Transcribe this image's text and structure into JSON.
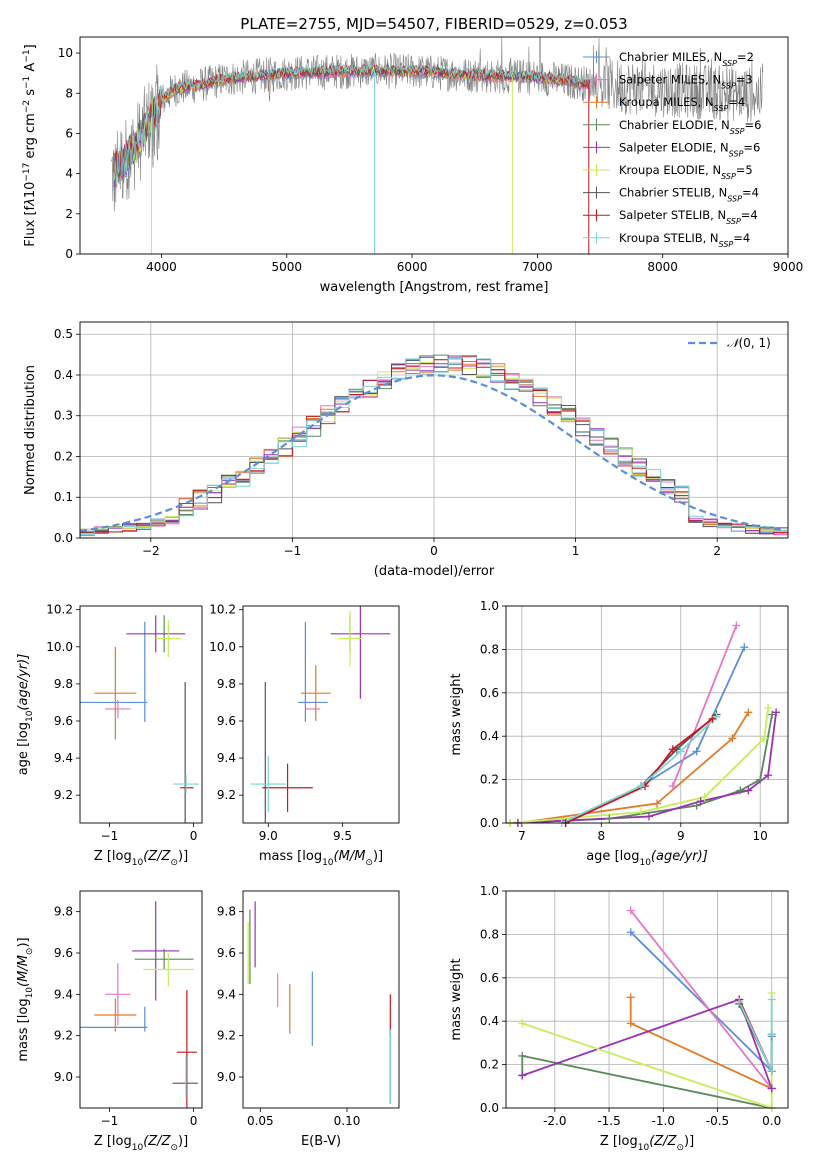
{
  "figure": {
    "title": "PLATE=2755, MJD=54507, FIBERID=0529, z=0.053"
  },
  "series_colors": {
    "Chabrier MILES": "#5b8fd9",
    "Salpeter MILES": "#e377c2",
    "Kroupa MILES": "#e07b2a",
    "Chabrier ELODIE": "#5a8a5a",
    "Salpeter ELODIE": "#9b30b8",
    "Kroupa ELODIE": "#c8ec5a",
    "Chabrier STELIB": "#555555",
    "Salpeter STELIB": "#c8171e",
    "Kroupa STELIB": "#7fd4d4",
    "observed": "#808080"
  },
  "chart_data": [
    {
      "type": "line",
      "title": "PLATE=2755, MJD=54507, FIBERID=0529, z=0.053",
      "xlabel": "wavelength [Angstrom, rest frame]",
      "ylabel_parts": [
        "Flux [f",
        "λ",
        "10",
        "−17",
        " erg cm",
        "−2",
        " s",
        "−1",
        " A",
        "−1",
        "]"
      ],
      "xlim": [
        3350,
        9000
      ],
      "ylim": [
        0,
        10.8
      ],
      "xticks": [
        4000,
        5000,
        6000,
        7000,
        8000,
        9000
      ],
      "yticks": [
        0,
        2,
        4,
        6,
        8,
        10
      ],
      "grid": false,
      "legend_position": "top-right",
      "legend": [
        {
          "name": "Chabrier MILES",
          "nssp": "2"
        },
        {
          "name": "Salpeter MILES",
          "nssp": "3"
        },
        {
          "name": "Kroupa MILES",
          "nssp": "4"
        },
        {
          "name": "Chabrier ELODIE",
          "nssp": "6"
        },
        {
          "name": "Salpeter ELODIE",
          "nssp": "6"
        },
        {
          "name": "Kroupa ELODIE",
          "nssp": "5"
        },
        {
          "name": "Chabrier STELIB",
          "nssp": "4"
        },
        {
          "name": "Salpeter STELIB",
          "nssp": "4"
        },
        {
          "name": "Kroupa STELIB",
          "nssp": "4"
        }
      ],
      "observed_wavelength_range": [
        3600,
        8800
      ],
      "model_wavelength_range": [
        3620,
        7420
      ],
      "continuum_profile": {
        "x": [
          3600,
          3700,
          3800,
          3900,
          4000,
          4100,
          4300,
          4500,
          5000,
          5500,
          6000,
          6500,
          7000,
          7500,
          8000,
          8500,
          8800
        ],
        "y": [
          4.0,
          4.6,
          5.4,
          6.6,
          7.6,
          8.2,
          8.4,
          8.7,
          9.0,
          9.1,
          9.1,
          8.9,
          8.8,
          8.4,
          8.2,
          8.0,
          7.9
        ]
      }
    },
    {
      "type": "histogram",
      "xlabel": "(data-model)/error",
      "ylabel": "Normed distribution",
      "xlim": [
        -2.5,
        2.5
      ],
      "ylim": [
        0,
        0.53
      ],
      "xticks": [
        -2,
        -1,
        0,
        1,
        2
      ],
      "yticks": [
        0.0,
        0.1,
        0.2,
        0.3,
        0.4,
        0.5
      ],
      "grid": true,
      "legend_position": "top-right",
      "reference_curve": {
        "name_parts": [
          "𝒩",
          "(0, 1)"
        ],
        "mean": 0,
        "sigma": 1,
        "style": "dashed"
      },
      "bin_edges_range": [
        -2.6,
        2.6
      ],
      "bin_width": 0.1,
      "peak_value": 0.5
    },
    {
      "type": "errorbar",
      "xlabel_parts": [
        "Z [log",
        "10",
        "(Z/Z",
        "⊙",
        ")]"
      ],
      "ylabel_parts": [
        "age  [log",
        "10",
        "(age/yr)]"
      ],
      "xlim": [
        -1.35,
        0.1
      ],
      "ylim": [
        9.05,
        10.22
      ],
      "xticks": [
        -1,
        0
      ],
      "yticks": [
        9.2,
        9.4,
        9.6,
        9.8,
        10.0,
        10.2
      ],
      "points": [
        {
          "series": "Chabrier MILES",
          "x": -0.58,
          "y": 9.865,
          "xerr": 0.0,
          "yerr": 0.27
        },
        {
          "series": "Chabrier MILES",
          "x": -0.95,
          "y": 9.7,
          "xerr": 0.4,
          "yerr": 0.0
        },
        {
          "series": "Salpeter MILES",
          "x": -0.9,
          "y": 9.665,
          "xerr": 0.15,
          "yerr": 0.05
        },
        {
          "series": "Kroupa MILES",
          "x": -0.93,
          "y": 9.75,
          "xerr": 0.25,
          "yerr": 0.25
        },
        {
          "series": "Chabrier ELODIE",
          "x": -0.35,
          "y": 10.07,
          "xerr": 0.0,
          "yerr": 0.1
        },
        {
          "series": "Salpeter ELODIE",
          "x": -0.45,
          "y": 10.07,
          "xerr": 0.35,
          "yerr": 0.1
        },
        {
          "series": "Kroupa ELODIE",
          "x": -0.3,
          "y": 10.045,
          "xerr": 0.15,
          "yerr": 0.1
        },
        {
          "series": "Chabrier STELIB",
          "x": -0.1,
          "y": 9.26,
          "xerr": 0.0,
          "yerr": 0.55
        },
        {
          "series": "Salpeter STELIB",
          "x": -0.08,
          "y": 9.24,
          "xerr": 0.08,
          "yerr": 0.0
        },
        {
          "series": "Kroupa STELIB",
          "x": -0.09,
          "y": 9.26,
          "xerr": 0.15,
          "yerr": 0.05
        }
      ]
    },
    {
      "type": "errorbar",
      "xlabel_parts": [
        "mass [log",
        "10",
        "(M/M",
        "⊙",
        ")]"
      ],
      "xlim": [
        8.83,
        9.88
      ],
      "ylim": [
        9.05,
        10.22
      ],
      "xticks": [
        9.0,
        9.5
      ],
      "yticks": [
        9.2,
        9.4,
        9.6,
        9.8,
        10.0,
        10.2
      ],
      "points": [
        {
          "series": "Chabrier MILES",
          "x": 9.25,
          "y": 9.865,
          "xerr": 0.0,
          "yerr": 0.27
        },
        {
          "series": "Chabrier MILES",
          "x": 9.3,
          "y": 9.7,
          "xerr": 0.1,
          "yerr": 0.0
        },
        {
          "series": "Salpeter MILES",
          "x": 9.3,
          "y": 9.665,
          "xerr": 0.05,
          "yerr": 0.0
        },
        {
          "series": "Kroupa MILES",
          "x": 9.32,
          "y": 9.75,
          "xerr": 0.1,
          "yerr": 0.15
        },
        {
          "series": "Chabrier ELODIE",
          "x": 9.55,
          "y": 10.07,
          "xerr": 0.0,
          "yerr": 0.1
        },
        {
          "series": "Salpeter ELODIE",
          "x": 9.62,
          "y": 10.07,
          "xerr": 0.2,
          "yerr": 0.35
        },
        {
          "series": "Kroupa ELODIE",
          "x": 9.55,
          "y": 10.045,
          "xerr": 0.08,
          "yerr": 0.15
        },
        {
          "series": "Chabrier STELIB",
          "x": 8.98,
          "y": 9.26,
          "xerr": 0.0,
          "yerr": 0.55
        },
        {
          "series": "Salpeter STELIB",
          "x": 9.13,
          "y": 9.24,
          "xerr": 0.17,
          "yerr": 0.13
        },
        {
          "series": "Kroupa STELIB",
          "x": 9.0,
          "y": 9.26,
          "xerr": 0.12,
          "yerr": 0.15
        }
      ]
    },
    {
      "type": "line",
      "xlabel_parts": [
        "age  [log",
        "10",
        "(age/yr)]"
      ],
      "ylabel": "mass weight",
      "xlim": [
        6.8,
        10.35
      ],
      "ylim": [
        0,
        1.0
      ],
      "xticks": [
        7,
        8,
        9,
        10
      ],
      "yticks": [
        0.0,
        0.2,
        0.4,
        0.6,
        0.8,
        1.0
      ],
      "grid": true,
      "marker": "+",
      "series": [
        {
          "name": "Chabrier MILES",
          "x": [
            7.55,
            8.5,
            9.2,
            9.8
          ],
          "y": [
            0.0,
            0.17,
            0.33,
            0.81
          ]
        },
        {
          "name": "Salpeter MILES",
          "x": [
            8.9,
            9.7
          ],
          "y": [
            0.17,
            0.91
          ]
        },
        {
          "name": "Kroupa MILES",
          "x": [
            6.95,
            8.7,
            9.65,
            9.85
          ],
          "y": [
            0.0,
            0.09,
            0.39,
            0.51
          ]
        },
        {
          "name": "Chabrier ELODIE",
          "x": [
            6.85,
            8.1,
            9.2,
            9.75,
            10.0,
            10.15
          ],
          "y": [
            0.0,
            0.02,
            0.08,
            0.15,
            0.2,
            0.5
          ]
        },
        {
          "name": "Salpeter ELODIE",
          "x": [
            6.95,
            8.6,
            9.25,
            9.85,
            10.1,
            10.2
          ],
          "y": [
            0.0,
            0.03,
            0.1,
            0.15,
            0.22,
            0.51
          ]
        },
        {
          "name": "Kroupa ELODIE",
          "x": [
            6.85,
            8.5,
            9.3,
            10.05,
            10.1
          ],
          "y": [
            0.0,
            0.05,
            0.12,
            0.39,
            0.53
          ]
        },
        {
          "name": "Chabrier STELIB",
          "x": [
            7.55,
            8.5,
            8.95,
            9.45
          ],
          "y": [
            0.0,
            0.17,
            0.34,
            0.5
          ]
        },
        {
          "name": "Salpeter STELIB",
          "x": [
            7.55,
            8.55,
            8.9,
            9.4
          ],
          "y": [
            0.0,
            0.17,
            0.34,
            0.48
          ]
        },
        {
          "name": "Kroupa STELIB",
          "x": [
            7.5,
            8.5,
            9.0,
            9.45
          ],
          "y": [
            0.0,
            0.17,
            0.33,
            0.49
          ]
        }
      ]
    },
    {
      "type": "errorbar",
      "xlabel_parts": [
        "Z [log",
        "10",
        "(Z/Z",
        "⊙",
        ")]"
      ],
      "ylabel_parts": [
        "mass [log",
        "10",
        "(M/M",
        "⊙",
        ")]"
      ],
      "xlim": [
        -1.35,
        0.1
      ],
      "ylim": [
        8.85,
        9.9
      ],
      "xticks": [
        -1,
        0
      ],
      "yticks": [
        9.0,
        9.2,
        9.4,
        9.6,
        9.8
      ],
      "points": [
        {
          "series": "Chabrier MILES",
          "x": -0.95,
          "y": 9.24,
          "xerr": 0.4,
          "yerr": 0.0
        },
        {
          "series": "Chabrier MILES",
          "x": -0.58,
          "y": 9.28,
          "xerr": 0.0,
          "yerr": 0.06
        },
        {
          "series": "Salpeter MILES",
          "x": -0.9,
          "y": 9.4,
          "xerr": 0.15,
          "yerr": 0.15
        },
        {
          "series": "Kroupa MILES",
          "x": -0.93,
          "y": 9.3,
          "xerr": 0.25,
          "yerr": 0.08
        },
        {
          "series": "Chabrier ELODIE",
          "x": -0.35,
          "y": 9.57,
          "xerr": 0.35,
          "yerr": 0.05
        },
        {
          "series": "Salpeter ELODIE",
          "x": -0.45,
          "y": 9.61,
          "xerr": 0.28,
          "yerr": 0.24
        },
        {
          "series": "Kroupa ELODIE",
          "x": -0.3,
          "y": 9.52,
          "xerr": 0.3,
          "yerr": 0.08
        },
        {
          "series": "Chabrier STELIB",
          "x": -0.1,
          "y": 8.97,
          "xerr": 0.15,
          "yerr": 0.0
        },
        {
          "series": "Salpeter STELIB",
          "x": -0.08,
          "y": 9.12,
          "xerr": 0.12,
          "yerr": 0.3
        },
        {
          "series": "Kroupa STELIB",
          "x": -0.09,
          "y": 9.0,
          "xerr": 0.0,
          "yerr": 0.1
        }
      ]
    },
    {
      "type": "errorbar",
      "xlabel": "E(B-V)",
      "xlim": [
        0.04,
        0.13
      ],
      "ylim": [
        8.85,
        9.9
      ],
      "xticks": [
        0.05,
        0.1
      ],
      "yticks": [
        9.0,
        9.2,
        9.4,
        9.6,
        9.8
      ],
      "points": [
        {
          "series": "Chabrier MILES",
          "x": 0.08,
          "y": 9.33,
          "xerr": 0.0,
          "yerr": 0.18
        },
        {
          "series": "Salpeter MILES",
          "x": 0.06,
          "y": 9.42,
          "xerr": 0.0,
          "yerr": 0.08
        },
        {
          "series": "Kroupa MILES",
          "x": 0.067,
          "y": 9.33,
          "xerr": 0.0,
          "yerr": 0.12
        },
        {
          "series": "Chabrier ELODIE",
          "x": 0.044,
          "y": 9.63,
          "xerr": 0.0,
          "yerr": 0.18
        },
        {
          "series": "Salpeter ELODIE",
          "x": 0.047,
          "y": 9.69,
          "xerr": 0.0,
          "yerr": 0.16
        },
        {
          "series": "Kroupa ELODIE",
          "x": 0.043,
          "y": 9.6,
          "xerr": 0.0,
          "yerr": 0.15
        },
        {
          "series": "Chabrier STELIB",
          "x": 0.125,
          "y": 9.05,
          "xerr": 0.0,
          "yerr": 0.18
        },
        {
          "series": "Salpeter STELIB",
          "x": 0.125,
          "y": 9.3,
          "xerr": 0.0,
          "yerr": 0.1
        },
        {
          "series": "Kroupa STELIB",
          "x": 0.125,
          "y": 9.05,
          "xerr": 0.0,
          "yerr": 0.18
        }
      ]
    },
    {
      "type": "line",
      "xlabel_parts": [
        "Z [log",
        "10",
        "(Z/Z",
        "⊙",
        ")]"
      ],
      "ylabel": "mass weight",
      "xlim": [
        -2.45,
        0.15
      ],
      "ylim": [
        0,
        1.0
      ],
      "xticks": [
        -2.0,
        -1.5,
        -1.0,
        -0.5,
        0.0
      ],
      "yticks": [
        0.0,
        0.2,
        0.4,
        0.6,
        0.8,
        1.0
      ],
      "grid": true,
      "marker": "+",
      "series": [
        {
          "name": "Chabrier MILES",
          "x": [
            -1.3,
            0.0,
            0.0
          ],
          "y": [
            0.81,
            0.17,
            0.33
          ]
        },
        {
          "name": "Salpeter MILES",
          "x": [
            -1.3,
            0.0
          ],
          "y": [
            0.91,
            0.09
          ]
        },
        {
          "name": "Kroupa MILES",
          "x": [
            -1.3,
            -1.3,
            0.0
          ],
          "y": [
            0.51,
            0.39,
            0.09
          ]
        },
        {
          "name": "Chabrier ELODIE",
          "x": [
            -2.3,
            -2.3,
            0.0
          ],
          "y": [
            0.15,
            0.24,
            0.0
          ]
        },
        {
          "name": "Salpeter ELODIE",
          "x": [
            -2.3,
            -0.3,
            0.0
          ],
          "y": [
            0.15,
            0.5,
            0.09
          ]
        },
        {
          "name": "Kroupa ELODIE",
          "x": [
            -2.3,
            0.0,
            0.0
          ],
          "y": [
            0.39,
            0.0,
            0.53
          ]
        },
        {
          "name": "Chabrier STELIB",
          "x": [
            -0.3,
            0.0,
            0.0
          ],
          "y": [
            0.48,
            0.17,
            0.34
          ]
        },
        {
          "name": "Salpeter STELIB",
          "x": [
            -0.3,
            0.0
          ],
          "y": [
            0.5,
            0.17
          ]
        },
        {
          "name": "Kroupa STELIB",
          "x": [
            -0.3,
            0.0,
            0.0,
            0.0
          ],
          "y": [
            0.49,
            0.17,
            0.34,
            0.5
          ]
        }
      ]
    }
  ]
}
